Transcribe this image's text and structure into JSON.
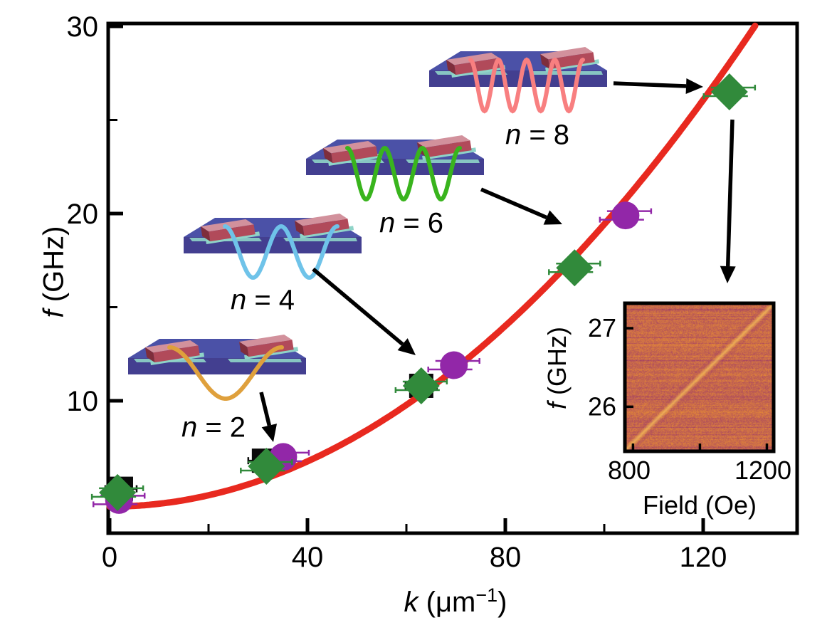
{
  "figure": {
    "background": "#ffffff",
    "frame_color": "#000000"
  },
  "labels": {
    "main_ylabel_italic": "f",
    "main_ylabel_rest": " (GHz)",
    "main_xlabel_italic": "k",
    "main_xlabel_pre": " (μm",
    "main_xlabel_sup": "−1",
    "main_xlabel_post": ")",
    "inset_ylabel_italic": "f",
    "inset_ylabel_rest": " (GHz)",
    "inset_xlabel": "Field (Oe)"
  },
  "chart_data": [
    {
      "id": "dispersion",
      "type": "scatter",
      "title": "",
      "xlabel": "k (μm−1)",
      "ylabel": "f (GHz)",
      "xlim": [
        0,
        139
      ],
      "ylim": [
        2.9,
        30.2
      ],
      "x_major_ticks": [
        0,
        40,
        80,
        120
      ],
      "x_minor_ticks": [
        20,
        60,
        100
      ],
      "y_major_ticks": [
        10,
        20,
        30
      ],
      "y_minor_ticks": [
        5,
        15,
        25
      ],
      "grid": false,
      "legend": "none",
      "series": [
        {
          "name": "parabolic-fit",
          "type": "line",
          "color": "#e8291f",
          "model": "f = f0 + a*k^2",
          "f0": 4.35,
          "a": 0.001508,
          "k_range": [
            0,
            131
          ]
        },
        {
          "name": "black-squares",
          "type": "scatter",
          "marker": "square",
          "color": "#0a0a0a",
          "xerr": 3.2,
          "points": [
            [
              2.3,
              5.3
            ],
            [
              31.2,
              6.8
            ],
            [
              63.0,
              10.8
            ]
          ]
        },
        {
          "name": "purple-circles",
          "type": "scatter",
          "marker": "circle",
          "color": "#9227a8",
          "xerr": 4.8,
          "points": [
            [
              1.9,
              4.7
            ],
            [
              35.1,
              7.0
            ],
            [
              69.6,
              11.9
            ],
            [
              104.3,
              19.9
            ]
          ]
        },
        {
          "name": "green-diamonds",
          "type": "scatter",
          "marker": "diamond",
          "color": "#318a3b",
          "xerr": 4.8,
          "points": [
            [
              1.6,
              5.1
            ],
            [
              31.7,
              6.5
            ],
            [
              63.0,
              10.8
            ],
            [
              94.0,
              17.1
            ],
            [
              125.3,
              26.5
            ]
          ]
        }
      ],
      "annotations": [
        {
          "label_var": "n",
          "label_eq": " = ",
          "label_val": "2",
          "wave_color": "#dfa03c",
          "troughs": 1
        },
        {
          "label_var": "n",
          "label_eq": " = ",
          "label_val": "4",
          "wave_color": "#6fc3e9",
          "troughs": 2
        },
        {
          "label_var": "n",
          "label_eq": " = ",
          "label_val": "6",
          "wave_color": "#39b41d",
          "troughs": 3
        },
        {
          "label_var": "n",
          "label_eq": " = ",
          "label_val": "8",
          "wave_color": "#f87f80",
          "troughs": 4
        }
      ]
    },
    {
      "id": "inset-field-sweep",
      "type": "heatmap",
      "xlabel": "Field (Oe)",
      "ylabel": "f (GHz)",
      "xlim": [
        780,
        1216
      ],
      "ylim": [
        25.45,
        27.3
      ],
      "x_major_ticks": [
        800,
        1200
      ],
      "x_minor_ticks": [
        1000
      ],
      "y_major_ticks": [
        26,
        27
      ],
      "colormap": {
        "base_orange": "#e28639",
        "band_purple": "#9a366c",
        "bright_line": "#f6be5a"
      },
      "feature": {
        "type": "diagonal-resonance-line",
        "from": [
          800,
          25.55
        ],
        "to": [
          1216,
          27.3
        ]
      }
    }
  ],
  "device_schematic": {
    "platform_top": "#4b51a7",
    "platform_front": "#433f90",
    "spacer_teal": "#8fd4c8",
    "antenna_top": "#d2919c",
    "antenna_front": "#b14a5a",
    "antenna_end": "#7e2e3c"
  }
}
